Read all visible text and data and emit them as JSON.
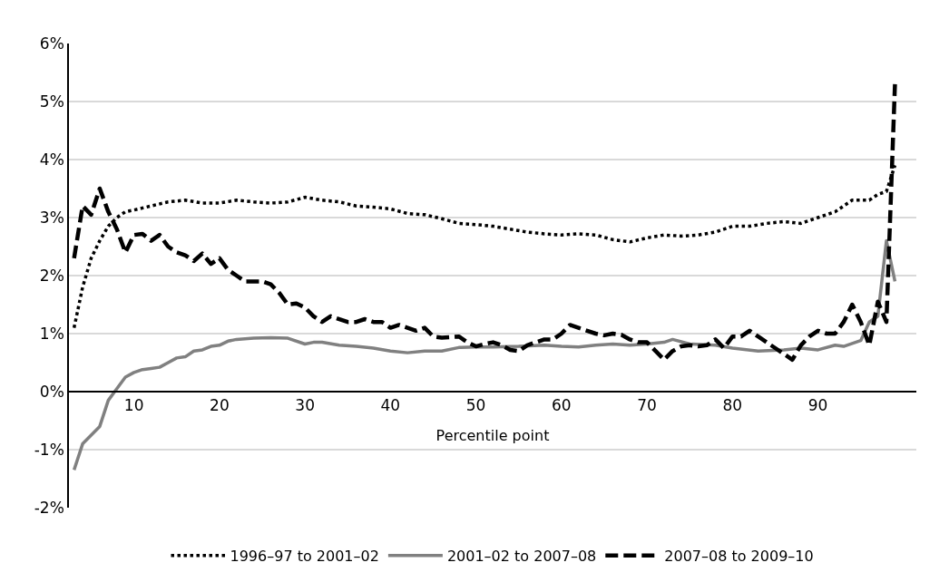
{
  "chart_data": {
    "type": "line",
    "xlabel": "Percentile point",
    "xlim": [
      2.4,
      101.5
    ],
    "xticks": [
      10,
      20,
      30,
      40,
      50,
      60,
      70,
      80,
      90
    ],
    "ylim": [
      -2,
      6
    ],
    "yticks": [
      {
        "value": -2,
        "label": "-2%"
      },
      {
        "value": -1,
        "label": "-1%"
      },
      {
        "value": 0,
        "label": "0%"
      },
      {
        "value": 1,
        "label": "1%"
      },
      {
        "value": 2,
        "label": "2%"
      },
      {
        "value": 3,
        "label": "3%"
      },
      {
        "value": 4,
        "label": "4%"
      },
      {
        "value": 5,
        "label": "5%"
      },
      {
        "value": 6,
        "label": "6%"
      }
    ],
    "grid": "y",
    "legend": "bottom",
    "series": [
      {
        "name": "1996–97 to 2001–02",
        "color": "#000000",
        "line_style": "dotted",
        "x": [
          3,
          4,
          5,
          6,
          7,
          8,
          9,
          10,
          12,
          14,
          16,
          18,
          20,
          22,
          24,
          26,
          28,
          30,
          32,
          34,
          36,
          38,
          40,
          42,
          44,
          46,
          48,
          50,
          52,
          54,
          56,
          58,
          60,
          62,
          64,
          66,
          68,
          70,
          72,
          74,
          76,
          78,
          80,
          82,
          84,
          86,
          88,
          90,
          92,
          94,
          95,
          96,
          97,
          98,
          99
        ],
        "values": [
          1.1,
          1.8,
          2.3,
          2.6,
          2.85,
          3.0,
          3.1,
          3.13,
          3.2,
          3.27,
          3.3,
          3.25,
          3.25,
          3.3,
          3.27,
          3.25,
          3.27,
          3.35,
          3.3,
          3.27,
          3.2,
          3.18,
          3.15,
          3.07,
          3.05,
          2.98,
          2.9,
          2.88,
          2.85,
          2.8,
          2.75,
          2.72,
          2.7,
          2.72,
          2.7,
          2.62,
          2.58,
          2.65,
          2.7,
          2.68,
          2.7,
          2.75,
          2.85,
          2.85,
          2.9,
          2.93,
          2.9,
          3.0,
          3.1,
          3.3,
          3.3,
          3.3,
          3.4,
          3.45,
          3.9
        ]
      },
      {
        "name": "2001–02 to 2007–08",
        "color": "#808080",
        "line_style": "solid",
        "x": [
          3,
          4,
          5,
          6,
          7,
          8,
          9,
          10,
          11,
          12,
          13,
          14,
          15,
          16,
          17,
          18,
          19,
          20,
          21,
          22,
          24,
          26,
          28,
          30,
          31,
          32,
          34,
          36,
          38,
          40,
          42,
          44,
          46,
          48,
          50,
          52,
          55,
          58,
          60,
          62,
          64,
          66,
          68,
          70,
          72,
          73,
          75,
          78,
          80,
          83,
          86,
          88,
          90,
          92,
          93,
          95,
          96,
          97,
          98,
          99
        ],
        "values": [
          -1.35,
          -0.9,
          -0.75,
          -0.6,
          -0.15,
          0.05,
          0.25,
          0.33,
          0.38,
          0.4,
          0.42,
          0.5,
          0.58,
          0.6,
          0.7,
          0.72,
          0.78,
          0.8,
          0.87,
          0.9,
          0.92,
          0.93,
          0.92,
          0.82,
          0.85,
          0.85,
          0.8,
          0.78,
          0.75,
          0.7,
          0.67,
          0.7,
          0.7,
          0.76,
          0.77,
          0.77,
          0.78,
          0.8,
          0.78,
          0.77,
          0.8,
          0.82,
          0.8,
          0.82,
          0.85,
          0.9,
          0.82,
          0.8,
          0.75,
          0.7,
          0.72,
          0.75,
          0.72,
          0.8,
          0.78,
          0.88,
          1.2,
          1.3,
          2.6,
          1.9
        ]
      },
      {
        "name": "2007–08 to 2009–10",
        "color": "#000000",
        "line_style": "dashed",
        "x": [
          3,
          4,
          5,
          6,
          7,
          8,
          9,
          10,
          11,
          12,
          13,
          14,
          15,
          16,
          17,
          18,
          19,
          20,
          21,
          22,
          23,
          25,
          26,
          27,
          28,
          29,
          30,
          31,
          32,
          33,
          35,
          36,
          37,
          38,
          39,
          40,
          41,
          42,
          43,
          44,
          45,
          46,
          48,
          49,
          50,
          51,
          52,
          53,
          54,
          55,
          56,
          57,
          58,
          59,
          60,
          61,
          62,
          63,
          64,
          65,
          66,
          67,
          68,
          69,
          70,
          71,
          72,
          73,
          74,
          75,
          76,
          77,
          78,
          79,
          80,
          81,
          82,
          83,
          84,
          85,
          86,
          87,
          88,
          89,
          90,
          91,
          92,
          93,
          94,
          95,
          96,
          97,
          98,
          99
        ],
        "values": [
          2.3,
          3.2,
          3.05,
          3.5,
          3.1,
          2.8,
          2.4,
          2.7,
          2.72,
          2.6,
          2.7,
          2.5,
          2.4,
          2.35,
          2.25,
          2.38,
          2.2,
          2.3,
          2.1,
          2.0,
          1.9,
          1.9,
          1.85,
          1.7,
          1.5,
          1.52,
          1.45,
          1.3,
          1.2,
          1.3,
          1.2,
          1.2,
          1.25,
          1.2,
          1.2,
          1.1,
          1.15,
          1.1,
          1.05,
          1.1,
          0.95,
          0.93,
          0.95,
          0.85,
          0.78,
          0.82,
          0.85,
          0.8,
          0.72,
          0.7,
          0.8,
          0.85,
          0.9,
          0.9,
          1.0,
          1.15,
          1.1,
          1.05,
          1.0,
          0.97,
          1.0,
          0.98,
          0.9,
          0.85,
          0.85,
          0.7,
          0.55,
          0.7,
          0.78,
          0.8,
          0.78,
          0.8,
          0.9,
          0.75,
          0.95,
          0.95,
          1.05,
          0.95,
          0.85,
          0.75,
          0.65,
          0.55,
          0.8,
          0.95,
          1.05,
          1.0,
          1.0,
          1.2,
          1.5,
          1.2,
          0.8,
          1.55,
          1.2,
          5.3
        ]
      }
    ]
  }
}
